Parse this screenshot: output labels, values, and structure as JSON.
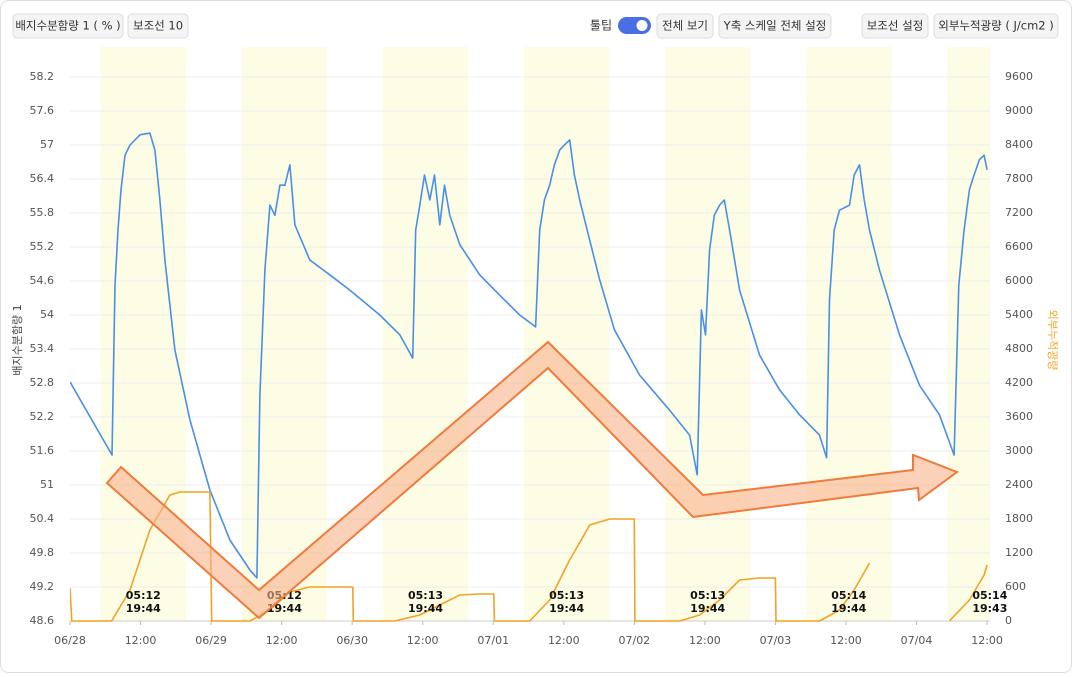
{
  "toolbar": {
    "series_button": "배지수분함량 1 ( % )",
    "guide_button": "보조선 10",
    "tooltip_label": "툴팁",
    "view_all": "전체 보기",
    "y_scale": "Y축 스케일 전체 설정",
    "guide_settings": "보조선 설정",
    "y2_button": "외부누적광량 ( J/cm2 )"
  },
  "chart_data": {
    "type": "line",
    "y_label": "배지수분함량 1",
    "y2_label": "외부누적광량",
    "xlim": [
      0,
      156.5
    ],
    "xticks": [
      {
        "value": 0,
        "label": "06/28"
      },
      {
        "value": 12,
        "label": "12:00"
      },
      {
        "value": 24,
        "label": "06/29"
      },
      {
        "value": 36,
        "label": "12:00"
      },
      {
        "value": 48,
        "label": "06/30"
      },
      {
        "value": 60,
        "label": "12:00"
      },
      {
        "value": 72,
        "label": "07/01"
      },
      {
        "value": 84,
        "label": "12:00"
      },
      {
        "value": 96,
        "label": "07/02"
      },
      {
        "value": 108,
        "label": "12:00"
      },
      {
        "value": 120,
        "label": "07/03"
      },
      {
        "value": 132,
        "label": "12:00"
      },
      {
        "value": 144,
        "label": "07/04"
      },
      {
        "value": 156,
        "label": "12:00"
      }
    ],
    "ylim": [
      48.6,
      58.2
    ],
    "yticks": [
      48.6,
      49.2,
      49.8,
      50.4,
      51,
      51.6,
      52.2,
      52.8,
      53.4,
      54,
      54.6,
      55.2,
      55.8,
      56.4,
      57,
      57.6,
      58.2
    ],
    "y2lim": [
      0,
      9600
    ],
    "y2ticks": [
      0,
      600,
      1200,
      1800,
      2400,
      3000,
      3600,
      4200,
      4800,
      5400,
      6000,
      6600,
      7200,
      7800,
      8400,
      9000,
      9600
    ],
    "grid": true,
    "daylight": [
      {
        "start": 5.2,
        "end": 19.73,
        "sunrise": "05:12",
        "sunset": "19:44"
      },
      {
        "start": 29.2,
        "end": 43.73,
        "sunrise": "05:12",
        "sunset": "19:44"
      },
      {
        "start": 53.22,
        "end": 67.73,
        "sunrise": "05:13",
        "sunset": "19:44"
      },
      {
        "start": 77.22,
        "end": 91.73,
        "sunrise": "05:13",
        "sunset": "19:44"
      },
      {
        "start": 101.22,
        "end": 115.73,
        "sunrise": "05:13",
        "sunset": "19:44"
      },
      {
        "start": 125.23,
        "end": 139.73,
        "sunrise": "05:14",
        "sunset": "19:44"
      },
      {
        "start": 149.23,
        "end": 163.72,
        "sunrise": "05:14",
        "sunset": "19:43"
      }
    ],
    "series": [
      {
        "color": "#4a8fe6",
        "axis": "y",
        "x": [
          0,
          7.14,
          7.65,
          8.16,
          8.67,
          9.35,
          10.2,
          11.9,
          13.6,
          14.45,
          15.3,
          16.15,
          17.85,
          20.4,
          23.8,
          27.2,
          30.6,
          31.8,
          32.3,
          33.15,
          34.0,
          34.85,
          35.7,
          36.55,
          37.4,
          38.25,
          40.8,
          44.2,
          47.6,
          52.7,
          56.1,
          58.3,
          58.8,
          59.5,
          60.3,
          61.2,
          62.0,
          62.9,
          63.7,
          64.6,
          66.3,
          69.7,
          73.1,
          76.5,
          79.2,
          79.9,
          80.7,
          81.6,
          82.4,
          83.3,
          84.1,
          85.0,
          85.8,
          86.7,
          88.4,
          90.1,
          92.6,
          96.9,
          102.0,
          105.4,
          106.7,
          107.4,
          108.1,
          108.8,
          109.6,
          110.5,
          111.3,
          112.2,
          113.9,
          117.3,
          120.7,
          124.1,
          127.5,
          128.7,
          129.2,
          130.0,
          130.9,
          132.6,
          133.4,
          134.3,
          135.1,
          136.0,
          137.7,
          141.1,
          144.5,
          147.9,
          150.4,
          151.2,
          152.1,
          153.0,
          153.8,
          154.7,
          155.5,
          156.0
        ],
        "values": [
          52.82,
          51.53,
          54.53,
          55.5,
          56.21,
          56.82,
          57.0,
          57.18,
          57.21,
          56.91,
          56.03,
          54.97,
          53.38,
          52.15,
          50.91,
          50.03,
          49.5,
          49.36,
          52.59,
          54.79,
          55.94,
          55.76,
          56.29,
          56.29,
          56.65,
          55.59,
          54.97,
          54.71,
          54.44,
          54.0,
          53.65,
          53.24,
          55.5,
          55.94,
          56.47,
          56.03,
          56.47,
          55.59,
          56.29,
          55.76,
          55.24,
          54.71,
          54.35,
          54.0,
          53.79,
          55.5,
          56.03,
          56.29,
          56.65,
          56.91,
          57.0,
          57.09,
          56.47,
          56.03,
          55.32,
          54.62,
          53.74,
          52.94,
          52.32,
          51.88,
          51.18,
          54.09,
          53.65,
          55.15,
          55.76,
          55.94,
          56.03,
          55.5,
          54.44,
          53.29,
          52.68,
          52.24,
          51.88,
          51.48,
          54.27,
          55.5,
          55.85,
          55.94,
          56.47,
          56.65,
          56.03,
          55.5,
          54.79,
          53.65,
          52.76,
          52.24,
          51.53,
          54.53,
          55.5,
          56.21,
          56.47,
          56.74,
          56.82,
          56.56
        ]
      },
      {
        "color": "#f0a324",
        "axis": "y2",
        "x": [
          0,
          0.3,
          7.1,
          10.2,
          13.6,
          17.0,
          18.7,
          23.8,
          24.1,
          30.6,
          34.0,
          37.4,
          40.8,
          48.1,
          48.2,
          55.2,
          59.5,
          62.9,
          66.3,
          69.7,
          72.1,
          72.2,
          78.2,
          81.6,
          85.0,
          88.4,
          91.8,
          96.0,
          96.1,
          103.7,
          107.1,
          110.5,
          113.9,
          117.3,
          120.0,
          120.1,
          127.5,
          130.9,
          133.4,
          136.0,
          140.0,
          149.6,
          153.0,
          155.5,
          156.0
        ],
        "values": [
          582,
          0,
          0,
          547,
          1606,
          2224,
          2277,
          2277,
          0,
          0,
          194,
          512,
          600,
          600,
          0,
          0,
          106,
          282,
          459,
          476,
          476,
          0,
          0,
          370,
          1077,
          1694,
          1800,
          1800,
          0,
          0,
          106,
          370,
          724,
          759,
          759,
          0,
          0,
          194,
          547,
          1024,
          null,
          0,
          370,
          812,
          988
        ]
      }
    ]
  }
}
